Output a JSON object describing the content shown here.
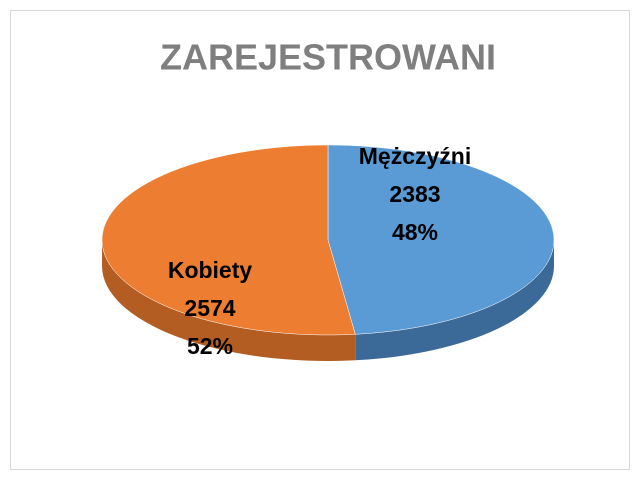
{
  "chart_data": {
    "type": "pie",
    "title": "ZAREJESTROWANI",
    "categories": [
      "Mężczyźni",
      "Kobiety"
    ],
    "values": [
      2383,
      2574
    ],
    "percent_labels": [
      "48%",
      "52%"
    ],
    "colors": [
      "#5b9bd5",
      "#ed7d31"
    ],
    "side_colors": [
      "#3b6a98",
      "#b35d22"
    ]
  }
}
